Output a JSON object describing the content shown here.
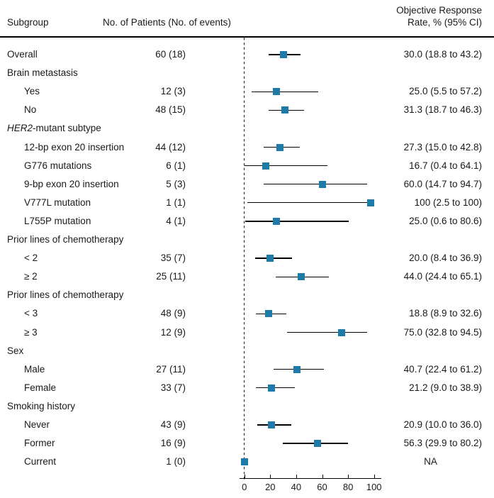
{
  "figure": {
    "header": {
      "col1": "Subgroup",
      "col2": "No. of Patients (No. of events)",
      "col3_line1": "Objective Response",
      "col3_line2": "Rate, % (95% CI)"
    },
    "colors": {
      "marker": "#1e7aa9",
      "text": "#1a1a1a",
      "ci_line": "#000000"
    }
  },
  "chart_data": {
    "type": "scatter",
    "variant": "forest-plot",
    "title": "",
    "xlabel": "",
    "x_axis": {
      "range": [
        0,
        100
      ],
      "ticks": [
        0,
        20,
        40,
        60,
        80,
        100
      ],
      "reference_line_x": 0
    },
    "rows": [
      {
        "label": "Overall",
        "indent": 0,
        "patients": "60 (18)",
        "estimate": 30.0,
        "ci_low": 18.8,
        "ci_high": 43.2,
        "ci_text": "30.0 (18.8 to 43.2)"
      },
      {
        "label": "Brain metastasis",
        "indent": 0,
        "group_header": true
      },
      {
        "label": "Yes",
        "indent": 1,
        "patients": "12 (3)",
        "estimate": 25.0,
        "ci_low": 5.5,
        "ci_high": 57.2,
        "ci_text": "25.0 (5.5 to 57.2)"
      },
      {
        "label": "No",
        "indent": 1,
        "patients": "48 (15)",
        "estimate": 31.3,
        "ci_low": 18.7,
        "ci_high": 46.3,
        "ci_text": "31.3 (18.7 to 46.3)"
      },
      {
        "label": "HER2-mutant subtype",
        "italic_prefix": "HER2",
        "indent": 0,
        "group_header": true
      },
      {
        "label": "12-bp exon 20 insertion",
        "indent": 1,
        "patients": "44 (12)",
        "estimate": 27.3,
        "ci_low": 15.0,
        "ci_high": 42.8,
        "ci_text": "27.3 (15.0 to 42.8)"
      },
      {
        "label": "G776 mutations",
        "indent": 1,
        "patients": "6 (1)",
        "estimate": 16.7,
        "ci_low": 0.4,
        "ci_high": 64.1,
        "ci_text": "16.7 (0.4 to 64.1)"
      },
      {
        "label": "9-bp exon 20 insertion",
        "indent": 1,
        "patients": "5 (3)",
        "estimate": 60.0,
        "ci_low": 14.7,
        "ci_high": 94.7,
        "ci_text": "60.0 (14.7 to 94.7)"
      },
      {
        "label": "V777L mutation",
        "indent": 1,
        "patients": "1 (1)",
        "estimate": 100,
        "ci_low": 2.5,
        "ci_high": 100,
        "ci_text": "100 (2.5 to 100)"
      },
      {
        "label": "L755P mutation",
        "indent": 1,
        "patients": "4 (1)",
        "estimate": 25.0,
        "ci_low": 0.6,
        "ci_high": 80.6,
        "ci_text": "25.0 (0.6 to 80.6)"
      },
      {
        "label": "Prior lines of chemotherapy",
        "indent": 0,
        "group_header": true
      },
      {
        "label": "< 2",
        "indent": 1,
        "patients": "35 (7)",
        "estimate": 20.0,
        "ci_low": 8.4,
        "ci_high": 36.9,
        "ci_text": "20.0 (8.4 to 36.9)"
      },
      {
        "label": "≥ 2",
        "indent": 1,
        "patients": "25 (11)",
        "estimate": 44.0,
        "ci_low": 24.4,
        "ci_high": 65.1,
        "ci_text": "44.0 (24.4 to 65.1)"
      },
      {
        "label": "Prior lines of chemotherapy",
        "indent": 0,
        "group_header": true
      },
      {
        "label": "< 3",
        "indent": 1,
        "patients": "48 (9)",
        "estimate": 18.8,
        "ci_low": 8.9,
        "ci_high": 32.6,
        "ci_text": "18.8 (8.9 to 32.6)"
      },
      {
        "label": "≥ 3",
        "indent": 1,
        "patients": "12 (9)",
        "estimate": 75.0,
        "ci_low": 32.8,
        "ci_high": 94.5,
        "ci_text": "75.0 (32.8 to 94.5)"
      },
      {
        "label": "Sex",
        "indent": 0,
        "group_header": true
      },
      {
        "label": "Male",
        "indent": 1,
        "patients": "27 (11)",
        "estimate": 40.7,
        "ci_low": 22.4,
        "ci_high": 61.2,
        "ci_text": "40.7 (22.4 to 61.2)"
      },
      {
        "label": "Female",
        "indent": 1,
        "patients": "33 (7)",
        "estimate": 21.2,
        "ci_low": 9.0,
        "ci_high": 38.9,
        "ci_text": "21.2 (9.0 to 38.9)"
      },
      {
        "label": "Smoking history",
        "indent": 0,
        "group_header": true
      },
      {
        "label": "Never",
        "indent": 1,
        "patients": "43 (9)",
        "estimate": 20.9,
        "ci_low": 10.0,
        "ci_high": 36.0,
        "ci_text": "20.9 (10.0 to 36.0)"
      },
      {
        "label": "Former",
        "indent": 1,
        "patients": "16 (9)",
        "estimate": 56.3,
        "ci_low": 29.9,
        "ci_high": 80.2,
        "ci_text": "56.3 (29.9 to 80.2)"
      },
      {
        "label": "Current",
        "indent": 1,
        "patients": "1 (0)",
        "estimate": 0,
        "ci_low": null,
        "ci_high": null,
        "ci_text": "NA"
      }
    ]
  }
}
